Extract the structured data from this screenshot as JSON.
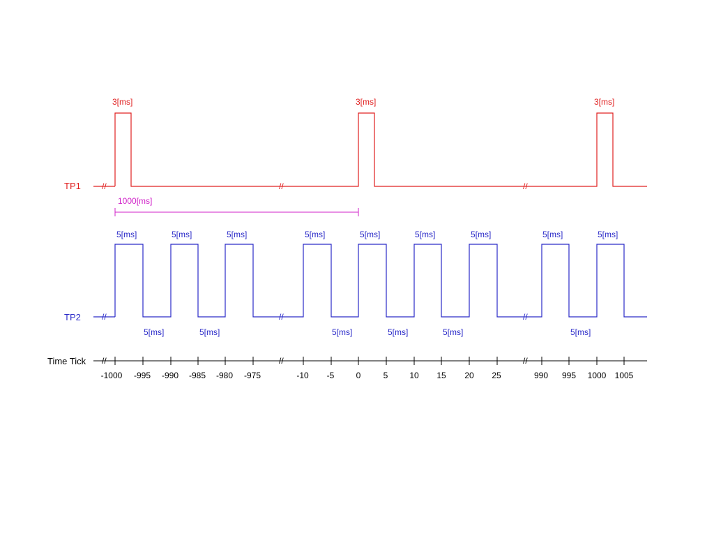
{
  "colors": {
    "tp1": "#e02020",
    "tp2": "#2a2ac8",
    "span": "#d020c8",
    "axis": "#000000"
  },
  "labels": {
    "tp1": "TP1",
    "tp2": "TP2",
    "time_tick": "Time Tick",
    "break_mark": "//"
  },
  "tp1": {
    "pulse_labels": [
      "3[ms]",
      "3[ms]",
      "3[ms]"
    ]
  },
  "span": {
    "label": "1000[ms]"
  },
  "tp2": {
    "high_labels": [
      "5[ms]",
      "5[ms]",
      "5[ms]",
      "5[ms]",
      "5[ms]",
      "5[ms]",
      "5[ms]",
      "5[ms]",
      "5[ms]"
    ],
    "low_labels": [
      "5[ms]",
      "5[ms]",
      "5[ms]",
      "5[ms]",
      "5[ms]",
      "5[ms]"
    ]
  },
  "ticks": {
    "labels": [
      "-1000",
      "-995",
      "-990",
      "-985",
      "-980",
      "-975",
      "-10",
      "-5",
      "0",
      "5",
      "10",
      "15",
      "20",
      "25",
      "990",
      "995",
      "1000",
      "1005"
    ]
  }
}
